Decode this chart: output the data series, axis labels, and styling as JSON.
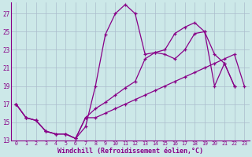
{
  "xlabel": "Windchill (Refroidissement éolien,°C)",
  "background_color": "#cce8e8",
  "grid_color": "#aabccc",
  "line_color": "#880088",
  "xlim": [
    -0.5,
    23.5
  ],
  "ylim": [
    13,
    28.2
  ],
  "yticks": [
    13,
    15,
    17,
    19,
    21,
    23,
    25,
    27
  ],
  "xticks": [
    0,
    1,
    2,
    3,
    4,
    5,
    6,
    7,
    8,
    9,
    10,
    11,
    12,
    13,
    14,
    15,
    16,
    17,
    18,
    19,
    20,
    21,
    22,
    23
  ],
  "series": [
    [
      17.0,
      15.5,
      15.2,
      14.0,
      13.7,
      13.7,
      13.2,
      14.5,
      19.0,
      24.7,
      27.0,
      28.0,
      27.0,
      22.5,
      22.7,
      22.5,
      22.0,
      23.0,
      24.8,
      25.0,
      19.0,
      21.5,
      19.0
    ],
    [
      17.0,
      15.5,
      15.2,
      14.0,
      13.7,
      13.7,
      13.2,
      15.5,
      15.5,
      16.0,
      16.5,
      17.0,
      17.5,
      18.0,
      18.5,
      19.0,
      19.5,
      20.0,
      20.5,
      21.0,
      21.5,
      22.0,
      22.5,
      19.0
    ],
    [
      17.0,
      15.5,
      15.2,
      14.0,
      13.7,
      13.7,
      13.2,
      15.5,
      16.5,
      17.2,
      18.0,
      18.8,
      19.5,
      22.0,
      22.7,
      23.0,
      24.8,
      25.5,
      26.0,
      25.0,
      22.5,
      21.5,
      19.0
    ]
  ],
  "series_x": [
    [
      0,
      1,
      2,
      3,
      4,
      5,
      6,
      7,
      8,
      9,
      10,
      11,
      12,
      13,
      14,
      15,
      16,
      17,
      18,
      19,
      20,
      21,
      22
    ],
    [
      0,
      1,
      2,
      3,
      4,
      5,
      6,
      7,
      8,
      9,
      10,
      11,
      12,
      13,
      14,
      15,
      16,
      17,
      18,
      19,
      20,
      21,
      22,
      23
    ],
    [
      0,
      1,
      2,
      3,
      4,
      5,
      6,
      7,
      8,
      9,
      10,
      11,
      12,
      13,
      14,
      15,
      16,
      17,
      18,
      19,
      20,
      21,
      22
    ]
  ]
}
